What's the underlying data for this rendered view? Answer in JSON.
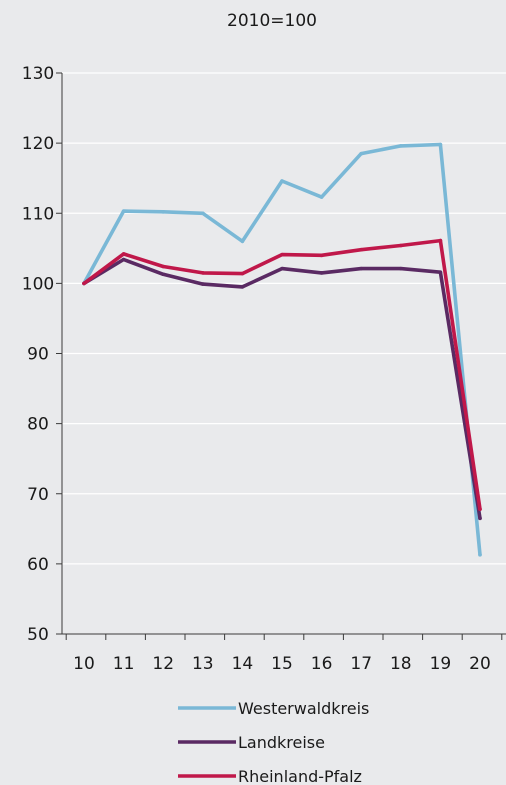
{
  "chart_data": {
    "type": "line",
    "title": "2010=100",
    "xlabel": "",
    "ylabel": "",
    "categories": [
      "10",
      "11",
      "12",
      "13",
      "14",
      "15",
      "16",
      "17",
      "18",
      "19",
      "20"
    ],
    "ylim": [
      50,
      130
    ],
    "yticks": [
      "50",
      "60",
      "70",
      "80",
      "90",
      "100",
      "110",
      "120",
      "130"
    ],
    "grid": "horizontal",
    "legend_position": "bottom",
    "series": [
      {
        "name": "Westerwaldkreis",
        "color": "#7ab8d6",
        "values": [
          100,
          110.3,
          110.2,
          110.0,
          106.0,
          114.6,
          112.3,
          118.5,
          119.6,
          119.8,
          61.3
        ]
      },
      {
        "name": "Landkreise",
        "color": "#5a2a63",
        "values": [
          100,
          103.4,
          101.3,
          99.9,
          99.5,
          102.1,
          101.5,
          102.1,
          102.1,
          101.6,
          66.5
        ]
      },
      {
        "name": "Rheinland-Pfalz",
        "color": "#c0184a",
        "values": [
          100,
          104.2,
          102.4,
          101.5,
          101.4,
          104.1,
          104.0,
          104.8,
          105.4,
          106.1,
          67.8
        ]
      }
    ]
  }
}
